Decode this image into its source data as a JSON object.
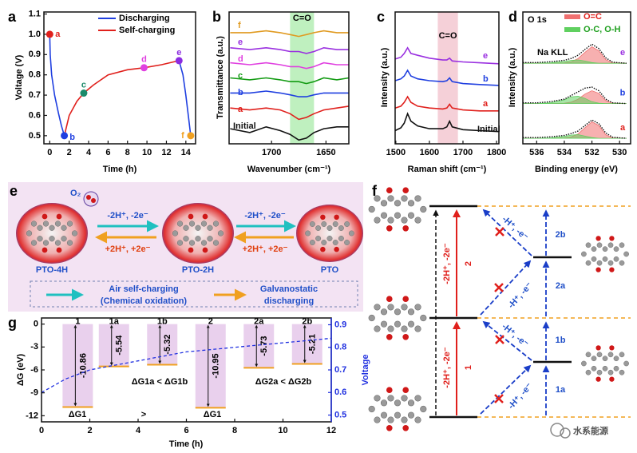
{
  "chart_data": [
    {
      "panel": "a",
      "type": "line",
      "xlabel": "Time (h)",
      "ylabel": "Voltage (V)",
      "xlim": [
        -0.6,
        15
      ],
      "ylim": [
        0.46,
        1.11
      ],
      "xticks": [
        0,
        2,
        4,
        6,
        8,
        10,
        12,
        14
      ],
      "yticks": [
        0.5,
        0.6,
        0.7,
        0.8,
        0.9,
        {
          "value": 1,
          "label": "1.0"
        },
        1.1
      ],
      "legend": "upper right",
      "series": [
        {
          "name": "Discharging",
          "color": "#1f3fe0",
          "x": [
            0,
            0.05,
            0.2,
            0.5,
            0.9,
            1.2,
            1.5,
            null,
            13.3,
            13.7,
            14.0,
            14.3,
            14.5
          ],
          "values": [
            1.0,
            0.9,
            0.8,
            0.7,
            0.61,
            0.55,
            0.5,
            null,
            0.87,
            0.8,
            0.7,
            0.58,
            0.5
          ]
        },
        {
          "name": "Self-charging",
          "color": "#e0201c",
          "x": [
            1.5,
            2.0,
            2.8,
            3.5,
            4.5,
            6.0,
            8.0,
            9.7,
            11.5,
            13.3
          ],
          "values": [
            0.5,
            0.6,
            0.67,
            0.71,
            0.75,
            0.8,
            0.825,
            0.835,
            0.85,
            0.87
          ]
        }
      ],
      "points": [
        {
          "label": "a",
          "x": 0,
          "y": 1.0,
          "color": "#e0201c"
        },
        {
          "label": "b",
          "x": 1.5,
          "y": 0.5,
          "color": "#1f3fe0"
        },
        {
          "label": "c",
          "x": 3.5,
          "y": 0.71,
          "color": "#1a8a6a"
        },
        {
          "label": "d",
          "x": 9.7,
          "y": 0.835,
          "color": "#e040e0"
        },
        {
          "label": "e",
          "x": 13.3,
          "y": 0.87,
          "color": "#8b2be0"
        },
        {
          "label": "f",
          "x": 14.5,
          "y": 0.5,
          "color": "#f0a020"
        }
      ]
    },
    {
      "panel": "b",
      "type": "line",
      "xlabel": "Wavenumber (cm⁻¹)",
      "ylabel": "Transmittance (a.u.)",
      "xlim": [
        1739,
        1629
      ],
      "ylim": [
        0,
        7
      ],
      "xticks": [
        1700,
        1650
      ],
      "band": [
        1683,
        1661
      ],
      "band_label": "C=O",
      "band_color": "#bff0bf",
      "x": [
        1738,
        1720,
        1705,
        1692,
        1683,
        1675,
        1668,
        1661,
        1652,
        1640,
        1629
      ],
      "series": [
        {
          "name": "Initial",
          "color": "#111111",
          "values": [
            0.8,
            0.6,
            0.9,
            0.7,
            0.5,
            0.2,
            0.3,
            0.6,
            0.8,
            0.9,
            0.9
          ]
        },
        {
          "name": "a",
          "color": "#e0201c",
          "values": [
            1.9,
            1.8,
            1.9,
            1.8,
            1.6,
            1.3,
            1.4,
            1.6,
            1.8,
            1.9,
            2.0
          ]
        },
        {
          "name": "b",
          "color": "#1f3fe0",
          "values": [
            2.7,
            2.7,
            2.8,
            2.7,
            2.6,
            2.5,
            2.5,
            2.6,
            2.7,
            2.7,
            2.7
          ]
        },
        {
          "name": "c",
          "color": "#139b13",
          "values": [
            3.5,
            3.4,
            3.5,
            3.4,
            3.3,
            3.3,
            3.2,
            3.3,
            3.5,
            3.4,
            3.5
          ]
        },
        {
          "name": "d",
          "color": "#e040e0",
          "values": [
            4.3,
            4.2,
            4.3,
            4.2,
            4.1,
            4.1,
            4.0,
            4.1,
            4.3,
            4.2,
            4.2
          ]
        },
        {
          "name": "e",
          "color": "#9a30e0",
          "values": [
            5.1,
            5.0,
            5.1,
            5.0,
            4.9,
            4.9,
            4.8,
            4.9,
            5.1,
            5.0,
            5.0
          ]
        },
        {
          "name": "f",
          "color": "#e09a20",
          "values": [
            5.9,
            5.9,
            6.0,
            5.9,
            5.8,
            5.7,
            5.8,
            5.9,
            6.0,
            5.9,
            5.9
          ]
        }
      ]
    },
    {
      "panel": "c",
      "type": "line",
      "xlabel": "Raman shift (cm⁻¹)",
      "ylabel": "Intensity (a.u.)",
      "xlim": [
        1498,
        1807
      ],
      "ylim": [
        0,
        7
      ],
      "xticks": [
        1500,
        1600,
        1700,
        1800
      ],
      "band": [
        1625,
        1685
      ],
      "band_label": "C=O",
      "band_color": "#f5d0d8",
      "x": [
        1498,
        1515,
        1525,
        1535,
        1545,
        1565,
        1600,
        1640,
        1652,
        1660,
        1668,
        1700,
        1750,
        1807
      ],
      "series": [
        {
          "name": "Initial",
          "color": "#111111",
          "values": [
            0.7,
            0.85,
            1.1,
            1.6,
            1.2,
            0.95,
            0.8,
            0.8,
            0.9,
            1.2,
            0.9,
            0.75,
            0.7,
            0.65
          ]
        },
        {
          "name": "a",
          "color": "#e0201c",
          "values": [
            1.9,
            2.0,
            2.2,
            2.5,
            2.2,
            2.0,
            1.9,
            1.85,
            1.9,
            2.1,
            1.9,
            1.8,
            1.75,
            1.75
          ]
        },
        {
          "name": "b",
          "color": "#1f3fe0",
          "values": [
            3.35,
            3.45,
            3.6,
            3.9,
            3.6,
            3.45,
            3.35,
            3.3,
            3.35,
            3.5,
            3.3,
            3.2,
            3.15,
            3.1
          ]
        },
        {
          "name": "e",
          "color": "#9a30e0",
          "values": [
            4.5,
            4.6,
            4.8,
            5.1,
            4.8,
            4.7,
            4.55,
            4.45,
            4.45,
            4.55,
            4.4,
            4.35,
            4.3,
            4.25
          ]
        }
      ]
    },
    {
      "panel": "d",
      "type": "area",
      "title": "O 1s",
      "annotation": "Na KLL",
      "xlabel": "Binding energy (eV)",
      "ylabel": "Intensity (a.u.)",
      "xlim": [
        537,
        529.2
      ],
      "ylim": [
        0,
        3.6
      ],
      "xticks": [
        536,
        534,
        532,
        530
      ],
      "legend": [
        {
          "name": "O=C",
          "color": "#f07070"
        },
        {
          "name": "O-C, O-H",
          "color": "#60d060"
        }
      ],
      "x": [
        537,
        536,
        535,
        534,
        533.5,
        533,
        532.5,
        532,
        531.5,
        531,
        530.5,
        529.5
      ],
      "spectra": [
        {
          "label": "e",
          "color": "#9a30e0",
          "values": [
            2.22,
            2.22,
            2.24,
            2.28,
            2.33,
            2.42,
            2.58,
            2.72,
            2.6,
            2.35,
            2.23,
            2.2
          ],
          "components": [
            [
              2.2,
              2.2,
              2.2,
              2.21,
              2.24,
              2.33,
              2.5,
              2.65,
              2.54,
              2.3,
              2.21,
              2.2
            ],
            [
              2.2,
              2.2,
              2.21,
              2.25,
              2.28,
              2.29,
              2.26,
              2.22,
              2.2,
              2.2,
              2.2,
              2.2
            ]
          ]
        },
        {
          "label": "b",
          "color": "#1f3fe0",
          "values": [
            1.12,
            1.12,
            1.15,
            1.22,
            1.32,
            1.42,
            1.52,
            1.55,
            1.45,
            1.22,
            1.12,
            1.1
          ],
          "components": [
            [
              1.1,
              1.1,
              1.1,
              1.11,
              1.14,
              1.22,
              1.36,
              1.45,
              1.38,
              1.18,
              1.11,
              1.1
            ],
            [
              1.1,
              1.1,
              1.12,
              1.2,
              1.28,
              1.3,
              1.24,
              1.15,
              1.11,
              1.1,
              1.1,
              1.1
            ]
          ]
        },
        {
          "label": "a",
          "color": "#e0201c",
          "values": [
            0.17,
            0.17,
            0.19,
            0.23,
            0.28,
            0.35,
            0.5,
            0.65,
            0.55,
            0.3,
            0.18,
            0.15
          ],
          "components": [
            [
              0.15,
              0.15,
              0.15,
              0.16,
              0.19,
              0.27,
              0.44,
              0.6,
              0.5,
              0.25,
              0.16,
              0.15
            ],
            [
              0.15,
              0.15,
              0.16,
              0.2,
              0.24,
              0.25,
              0.21,
              0.17,
              0.15,
              0.15,
              0.15,
              0.15
            ]
          ]
        }
      ]
    },
    {
      "panel": "g",
      "type": "bar",
      "xlabel": "Time (h)",
      "ylabel": "ΔG (eV)",
      "y2label": "Voltage",
      "xlim": [
        0,
        12
      ],
      "ylim": [
        -12.8,
        0.8
      ],
      "y2lim": [
        0.47,
        0.93
      ],
      "xticks": [
        0,
        2,
        4,
        6,
        8,
        10,
        12
      ],
      "yticks": [
        -12,
        -9,
        -6,
        -3,
        0
      ],
      "y2ticks": [
        0.5,
        0.6,
        0.7,
        0.8,
        0.9
      ],
      "categories": [
        "1",
        "1a",
        "1b",
        "2",
        "2a",
        "2b"
      ],
      "x": [
        1.5,
        3.0,
        5.0,
        7.0,
        9.0,
        11.0
      ],
      "values": [
        -10.86,
        -5.54,
        -5.32,
        -10.95,
        -5.73,
        -5.21
      ],
      "color": "#e4c4e8",
      "edge_color": "#f0a020",
      "annotations": [
        "ΔG1",
        ">",
        "ΔG1",
        "ΔG1a < ΔG1b",
        "ΔG2a < ΔG2b"
      ],
      "series": [
        {
          "color": "#2030e0",
          "axis": "y2",
          "x": [
            0,
            1,
            2,
            3,
            4,
            5,
            6,
            7,
            8,
            9,
            10,
            11,
            12
          ],
          "values": [
            0.6,
            0.66,
            0.7,
            0.72,
            0.74,
            0.76,
            0.78,
            0.79,
            0.8,
            0.81,
            0.82,
            0.83,
            0.84
          ]
        }
      ]
    }
  ],
  "scheme_e": {
    "panel": "e",
    "oxygen": "O₂",
    "molecules": [
      "PTO-4H",
      "PTO-2H",
      "PTO"
    ],
    "forward": "-2H⁺, -2e⁻",
    "backward": "+2H⁺, +2e⁻",
    "legend": [
      [
        "Air self-charging",
        "(Chemical oxidation)"
      ],
      [
        "Galvanostatic",
        "discharging"
      ]
    ]
  },
  "scheme_f": {
    "panel": "f",
    "two_step": [
      {
        "step": "2",
        "text": "-2H⁺, -2e⁻"
      },
      {
        "step": "1",
        "text": "-2H⁺, -2e⁻"
      }
    ],
    "one_step": [
      "2b",
      "2a",
      "1b",
      "1a"
    ],
    "one_step_text": "-H⁺, -e⁻"
  },
  "watermark": "水系能源"
}
